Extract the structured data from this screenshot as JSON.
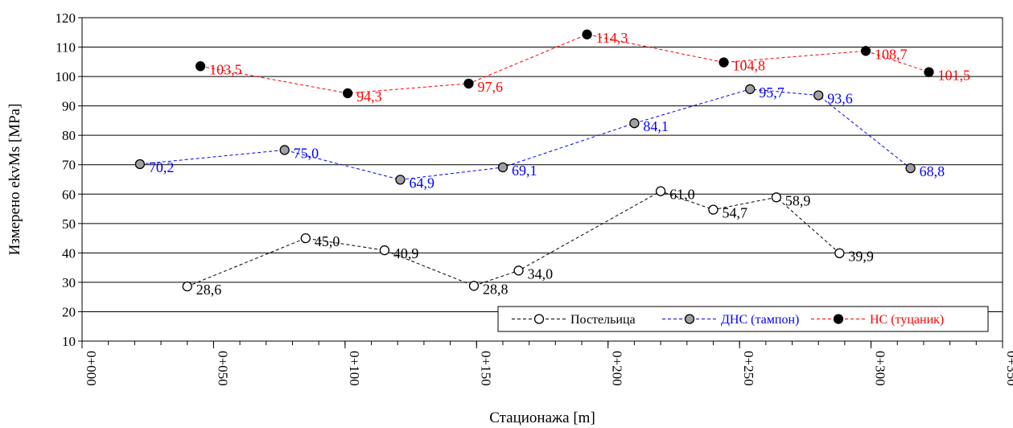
{
  "chart_data": {
    "type": "line",
    "xlabel": "Стационажа  [m]",
    "ylabel": "Измерено  ekvMs [MPa]",
    "xlim": [
      0,
      350
    ],
    "ylim": [
      10,
      120
    ],
    "xticks": [
      0,
      50,
      100,
      150,
      200,
      250,
      300,
      350
    ],
    "xtick_labels": [
      "0+000",
      "0+050",
      "0+100",
      "0+150",
      "0+200",
      "0+250",
      "0+300",
      "0+350"
    ],
    "yticks": [
      10,
      20,
      30,
      40,
      50,
      60,
      70,
      80,
      90,
      100,
      110,
      120
    ],
    "grid": {
      "horizontal": true,
      "vertical": false
    },
    "legend_position": "bottom-right",
    "series": [
      {
        "name": "Постельица",
        "color": "#000000",
        "marker_fill": "#ffffff",
        "x": [
          40,
          85,
          115,
          149,
          166,
          220,
          240,
          264,
          288
        ],
        "y": [
          28.6,
          45.0,
          40.9,
          28.8,
          34.0,
          61.0,
          54.7,
          58.9,
          39.9
        ],
        "labels": [
          "28,6",
          "45,0",
          "40,9",
          "28,8",
          "34,0",
          "61,0",
          "54,7",
          "58,9",
          "39,9"
        ]
      },
      {
        "name": "ДНС (тампон)",
        "color": "#0000ff",
        "marker_fill": "#a0a0a0",
        "x": [
          22,
          77,
          121,
          160,
          210,
          254,
          280,
          315
        ],
        "y": [
          70.2,
          75.0,
          64.9,
          69.1,
          84.1,
          95.7,
          93.6,
          68.8
        ],
        "labels": [
          "70,2",
          "75,0",
          "64,9",
          "69,1",
          "84,1",
          "95,7",
          "93,6",
          "68,8"
        ]
      },
      {
        "name": "НС (туцаник)",
        "color": "#ff0000",
        "marker_fill": "#000000",
        "x": [
          45,
          101,
          147,
          192,
          244,
          298,
          322
        ],
        "y": [
          103.5,
          94.3,
          97.6,
          114.3,
          104.8,
          108.7,
          101.5
        ],
        "labels": [
          "103,5",
          "94,3",
          "97,6",
          "114,3",
          "104,8",
          "108,7",
          "101,5"
        ]
      }
    ]
  }
}
